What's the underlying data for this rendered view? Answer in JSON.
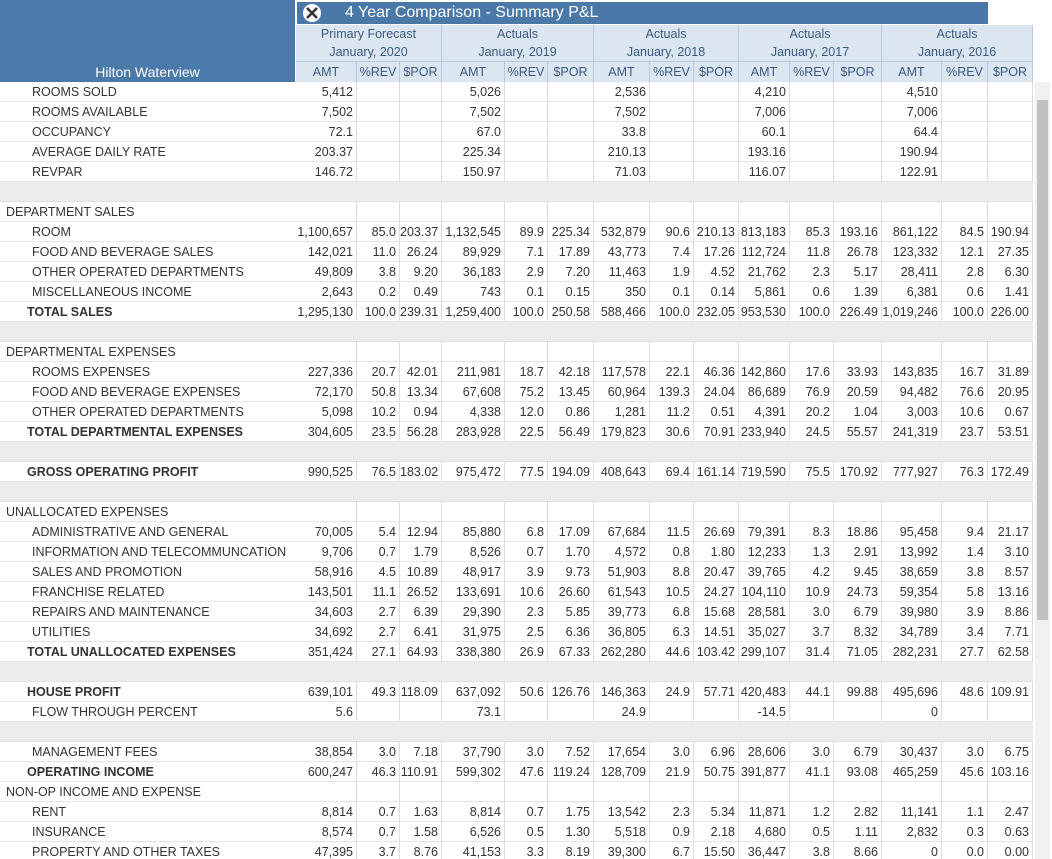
{
  "header": {
    "title": "4 Year Comparison - Summary P&L",
    "property": "Hilton Waterview",
    "groups": [
      {
        "line1": "Primary Forecast",
        "line2": "January, 2020"
      },
      {
        "line1": "Actuals",
        "line2": "January, 2019"
      },
      {
        "line1": "Actuals",
        "line2": "January, 2018"
      },
      {
        "line1": "Actuals",
        "line2": "January, 2017"
      },
      {
        "line1": "Actuals",
        "line2": "January, 2016"
      }
    ],
    "subcolumns": [
      "AMT",
      "%REV",
      "$POR"
    ]
  },
  "table": {
    "rows": [
      {
        "label": "ROOMS SOLD",
        "kind": "item",
        "cells": [
          "5,412",
          null,
          null,
          "5,026",
          null,
          null,
          "2,536",
          null,
          null,
          "4,210",
          null,
          null,
          "4,510",
          null,
          null
        ]
      },
      {
        "label": "ROOMS AVAILABLE",
        "kind": "item",
        "cells": [
          "7,502",
          null,
          null,
          "7,502",
          null,
          null,
          "7,502",
          null,
          null,
          "7,006",
          null,
          null,
          "7,006",
          null,
          null
        ]
      },
      {
        "label": "OCCUPANCY",
        "kind": "item",
        "cells": [
          "72.1",
          null,
          null,
          "67.0",
          null,
          null,
          "33.8",
          null,
          null,
          "60.1",
          null,
          null,
          "64.4",
          null,
          null
        ]
      },
      {
        "label": "AVERAGE DAILY RATE",
        "kind": "item",
        "cells": [
          "203.37",
          null,
          null,
          "225.34",
          null,
          null,
          "210.13",
          null,
          null,
          "193.16",
          null,
          null,
          "190.94",
          null,
          null
        ]
      },
      {
        "label": "REVPAR",
        "kind": "item",
        "cells": [
          "146.72",
          null,
          null,
          "150.97",
          null,
          null,
          "71.03",
          null,
          null,
          "116.07",
          null,
          null,
          "122.91",
          null,
          null
        ]
      },
      null,
      {
        "label": "DEPARTMENT SALES",
        "kind": "section"
      },
      {
        "label": "ROOM",
        "kind": "item",
        "cells": [
          "1,100,657",
          "85.0",
          "203.37",
          "1,132,545",
          "89.9",
          "225.34",
          "532,879",
          "90.6",
          "210.13",
          "813,183",
          "85.3",
          "193.16",
          "861,122",
          "84.5",
          "190.94"
        ]
      },
      {
        "label": "FOOD AND BEVERAGE SALES",
        "kind": "item",
        "cells": [
          "142,021",
          "11.0",
          "26.24",
          "89,929",
          "7.1",
          "17.89",
          "43,773",
          "7.4",
          "17.26",
          "112,724",
          "11.8",
          "26.78",
          "123,332",
          "12.1",
          "27.35"
        ]
      },
      {
        "label": "OTHER OPERATED DEPARTMENTS",
        "kind": "item",
        "cells": [
          "49,809",
          "3.8",
          "9.20",
          "36,183",
          "2.9",
          "7.20",
          "11,463",
          "1.9",
          "4.52",
          "21,762",
          "2.3",
          "5.17",
          "28,411",
          "2.8",
          "6.30"
        ]
      },
      {
        "label": "MISCELLANEOUS INCOME",
        "kind": "item",
        "cells": [
          "2,643",
          "0.2",
          "0.49",
          "743",
          "0.1",
          "0.15",
          "350",
          "0.1",
          "0.14",
          "5,861",
          "0.6",
          "1.39",
          "6,381",
          "0.6",
          "1.41"
        ]
      },
      {
        "label": "TOTAL SALES",
        "kind": "total",
        "cells": [
          "1,295,130",
          "100.0",
          "239.31",
          "1,259,400",
          "100.0",
          "250.58",
          "588,466",
          "100.0",
          "232.05",
          "953,530",
          "100.0",
          "226.49",
          "1,019,246",
          "100.0",
          "226.00"
        ]
      },
      null,
      {
        "label": "DEPARTMENTAL EXPENSES",
        "kind": "section"
      },
      {
        "label": "ROOMS EXPENSES",
        "kind": "item",
        "cells": [
          "227,336",
          "20.7",
          "42.01",
          "211,981",
          "18.7",
          "42.18",
          "117,578",
          "22.1",
          "46.36",
          "142,860",
          "17.6",
          "33.93",
          "143,835",
          "16.7",
          "31.89"
        ]
      },
      {
        "label": "FOOD AND BEVERAGE EXPENSES",
        "kind": "item",
        "cells": [
          "72,170",
          "50.8",
          "13.34",
          "67,608",
          "75.2",
          "13.45",
          "60,964",
          "139.3",
          "24.04",
          "86,689",
          "76.9",
          "20.59",
          "94,482",
          "76.6",
          "20.95"
        ]
      },
      {
        "label": "OTHER OPERATED DEPARTMENTS",
        "kind": "item",
        "cells": [
          "5,098",
          "10.2",
          "0.94",
          "4,338",
          "12.0",
          "0.86",
          "1,281",
          "11.2",
          "0.51",
          "4,391",
          "20.2",
          "1.04",
          "3,003",
          "10.6",
          "0.67"
        ]
      },
      {
        "label": "TOTAL DEPARTMENTAL EXPENSES",
        "kind": "total",
        "cells": [
          "304,605",
          "23.5",
          "56.28",
          "283,928",
          "22.5",
          "56.49",
          "179,823",
          "30.6",
          "70.91",
          "233,940",
          "24.5",
          "55.57",
          "241,319",
          "23.7",
          "53.51"
        ]
      },
      null,
      {
        "label": "GROSS OPERATING PROFIT",
        "kind": "total",
        "cells": [
          "990,525",
          "76.5",
          "183.02",
          "975,472",
          "77.5",
          "194.09",
          "408,643",
          "69.4",
          "161.14",
          "719,590",
          "75.5",
          "170.92",
          "777,927",
          "76.3",
          "172.49"
        ]
      },
      null,
      {
        "label": "UNALLOCATED EXPENSES",
        "kind": "section"
      },
      {
        "label": "ADMINISTRATIVE AND GENERAL",
        "kind": "item",
        "cells": [
          "70,005",
          "5.4",
          "12.94",
          "85,880",
          "6.8",
          "17.09",
          "67,684",
          "11.5",
          "26.69",
          "79,391",
          "8.3",
          "18.86",
          "95,458",
          "9.4",
          "21.17"
        ]
      },
      {
        "label": "INFORMATION AND TELECOMMUNCATION",
        "kind": "item",
        "cells": [
          "9,706",
          "0.7",
          "1.79",
          "8,526",
          "0.7",
          "1.70",
          "4,572",
          "0.8",
          "1.80",
          "12,233",
          "1.3",
          "2.91",
          "13,992",
          "1.4",
          "3.10"
        ]
      },
      {
        "label": "SALES AND PROMOTION",
        "kind": "item",
        "cells": [
          "58,916",
          "4.5",
          "10.89",
          "48,917",
          "3.9",
          "9.73",
          "51,903",
          "8.8",
          "20.47",
          "39,765",
          "4.2",
          "9.45",
          "38,659",
          "3.8",
          "8.57"
        ]
      },
      {
        "label": "FRANCHISE RELATED",
        "kind": "item",
        "cells": [
          "143,501",
          "11.1",
          "26.52",
          "133,691",
          "10.6",
          "26.60",
          "61,543",
          "10.5",
          "24.27",
          "104,110",
          "10.9",
          "24.73",
          "59,354",
          "5.8",
          "13.16"
        ]
      },
      {
        "label": "REPAIRS AND MAINTENANCE",
        "kind": "item",
        "cells": [
          "34,603",
          "2.7",
          "6.39",
          "29,390",
          "2.3",
          "5.85",
          "39,773",
          "6.8",
          "15.68",
          "28,581",
          "3.0",
          "6.79",
          "39,980",
          "3.9",
          "8.86"
        ]
      },
      {
        "label": "UTILITIES",
        "kind": "item",
        "cells": [
          "34,692",
          "2.7",
          "6.41",
          "31,975",
          "2.5",
          "6.36",
          "36,805",
          "6.3",
          "14.51",
          "35,027",
          "3.7",
          "8.32",
          "34,789",
          "3.4",
          "7.71"
        ]
      },
      {
        "label": "TOTAL UNALLOCATED EXPENSES",
        "kind": "total",
        "cells": [
          "351,424",
          "27.1",
          "64.93",
          "338,380",
          "26.9",
          "67.33",
          "262,280",
          "44.6",
          "103.42",
          "299,107",
          "31.4",
          "71.05",
          "282,231",
          "27.7",
          "62.58"
        ]
      },
      null,
      {
        "label": "HOUSE PROFIT",
        "kind": "total",
        "cells": [
          "639,101",
          "49.3",
          "118.09",
          "637,092",
          "50.6",
          "126.76",
          "146,363",
          "24.9",
          "57.71",
          "420,483",
          "44.1",
          "99.88",
          "495,696",
          "48.6",
          "109.91"
        ]
      },
      {
        "label": "FLOW THROUGH PERCENT",
        "kind": "item",
        "cells": [
          "5.6",
          null,
          null,
          "73.1",
          null,
          null,
          "24.9",
          null,
          null,
          "-14.5",
          null,
          null,
          "0",
          null,
          null
        ]
      },
      null,
      {
        "label": "MANAGEMENT FEES",
        "kind": "item",
        "cells": [
          "38,854",
          "3.0",
          "7.18",
          "37,790",
          "3.0",
          "7.52",
          "17,654",
          "3.0",
          "6.96",
          "28,606",
          "3.0",
          "6.79",
          "30,437",
          "3.0",
          "6.75"
        ]
      },
      {
        "label": "OPERATING INCOME",
        "kind": "total",
        "cells": [
          "600,247",
          "46.3",
          "110.91",
          "599,302",
          "47.6",
          "119.24",
          "128,709",
          "21.9",
          "50.75",
          "391,877",
          "41.1",
          "93.08",
          "465,259",
          "45.6",
          "103.16"
        ]
      },
      {
        "label": "NON-OP INCOME AND EXPENSE",
        "kind": "section"
      },
      {
        "label": "RENT",
        "kind": "item",
        "cells": [
          "8,814",
          "0.7",
          "1.63",
          "8,814",
          "0.7",
          "1.75",
          "13,542",
          "2.3",
          "5.34",
          "11,871",
          "1.2",
          "2.82",
          "11,141",
          "1.1",
          "2.47"
        ]
      },
      {
        "label": "INSURANCE",
        "kind": "item",
        "cells": [
          "8,574",
          "0.7",
          "1.58",
          "6,526",
          "0.5",
          "1.30",
          "5,518",
          "0.9",
          "2.18",
          "4,680",
          "0.5",
          "1.11",
          "2,832",
          "0.3",
          "0.63"
        ]
      },
      {
        "label": "PROPERTY AND OTHER TAXES",
        "kind": "item",
        "cells": [
          "47,395",
          "3.7",
          "8.76",
          "41,153",
          "3.3",
          "8.19",
          "39,300",
          "6.7",
          "15.50",
          "36,447",
          "3.8",
          "8.66",
          "0",
          "0.0",
          "0.00"
        ]
      }
    ]
  }
}
